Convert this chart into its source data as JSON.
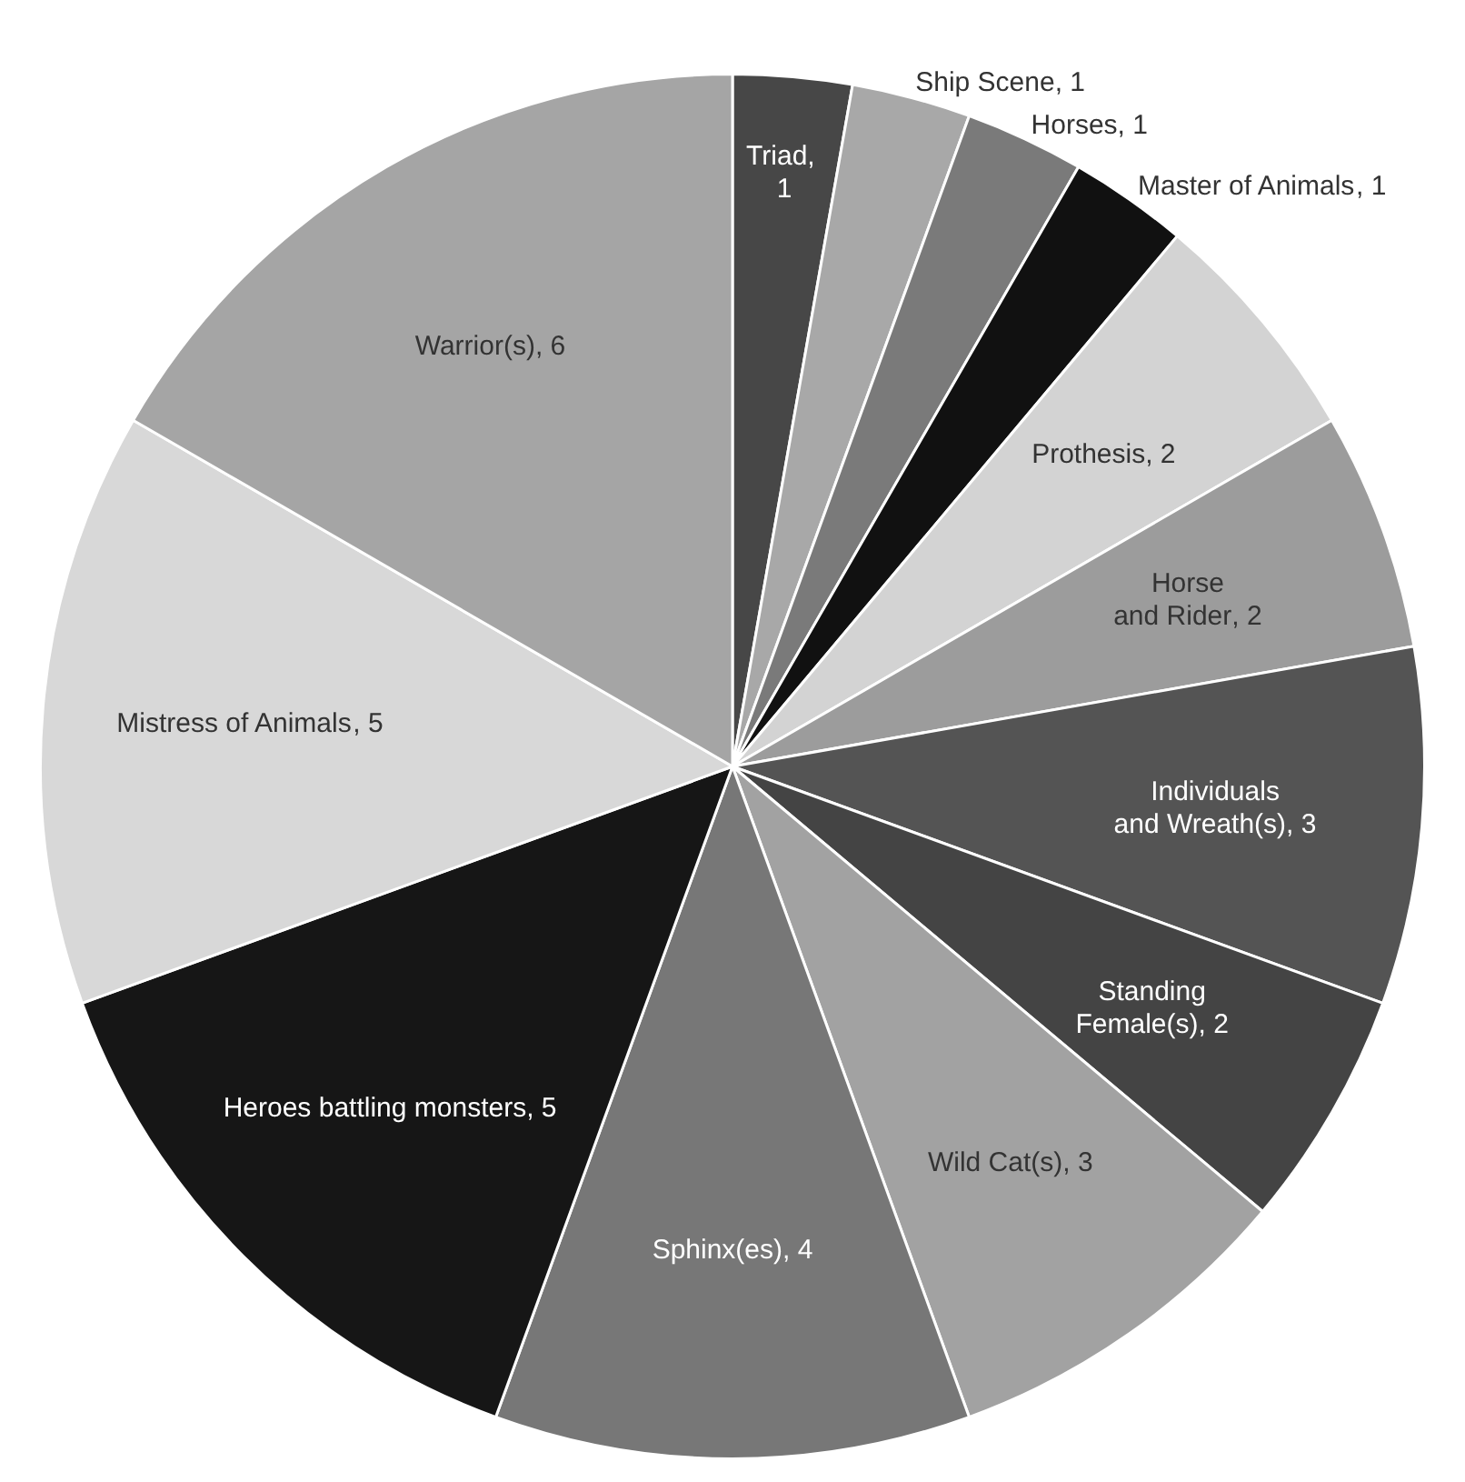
{
  "chart_data": {
    "type": "pie",
    "categories": [
      "Triad",
      "Ship Scene",
      "Horses",
      "Master of Animals",
      "Prothesis",
      "Horse and Rider",
      "Individuals and Wreath(s)",
      "Standing Female(s)",
      "Wild Cat(s)",
      "Sphinx(es)",
      "Heroes battling monsters",
      "Mistress of Animals",
      "Warrior(s)"
    ],
    "values": [
      1,
      1,
      1,
      1,
      2,
      2,
      3,
      2,
      3,
      4,
      5,
      5,
      6
    ],
    "colors": [
      "#474747",
      "#a8a8a8",
      "#7a7a7a",
      "#111111",
      "#d3d3d3",
      "#9c9c9c",
      "#545454",
      "#444444",
      "#a2a2a2",
      "#777777",
      "#161616",
      "#d8d8d8",
      "#a5a5a5"
    ],
    "value_labels": [
      ", 1",
      ", 1",
      ", 1",
      ", 1",
      ", 2",
      ", 2",
      ", 3",
      ", 2",
      ", 3",
      ", 4",
      ", 5",
      ", 5",
      ", 6"
    ],
    "legend": false
  }
}
